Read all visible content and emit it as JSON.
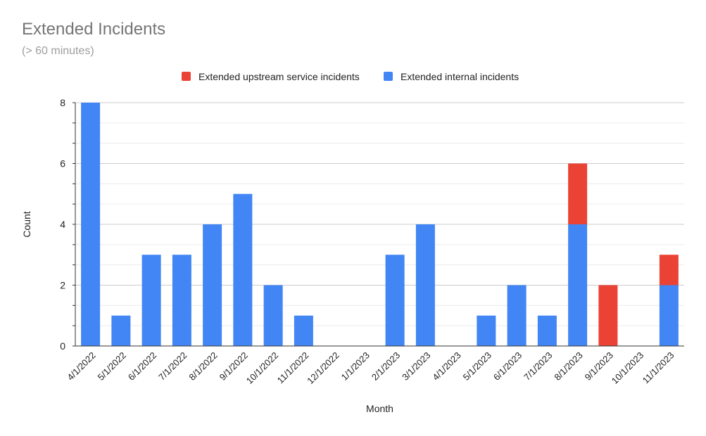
{
  "chart_data": {
    "type": "bar",
    "stacked": true,
    "title": "Extended Incidents",
    "subtitle": "(> 60 minutes)",
    "xlabel": "Month",
    "ylabel": "Count",
    "ylim": [
      0,
      8
    ],
    "yticks": [
      0,
      2,
      4,
      6,
      8
    ],
    "grid": true,
    "legend_position": "top",
    "categories": [
      "4/1/2022",
      "5/1/2022",
      "6/1/2022",
      "7/1/2022",
      "8/1/2022",
      "9/1/2022",
      "10/1/2022",
      "11/1/2022",
      "12/1/2022",
      "1/1/2023",
      "2/1/2023",
      "3/1/2023",
      "4/1/2023",
      "5/1/2023",
      "6/1/2023",
      "7/1/2023",
      "8/1/2023",
      "9/1/2023",
      "10/1/2023",
      "11/1/2023"
    ],
    "series": [
      {
        "name": "Extended internal incidents",
        "color": "#4285f4",
        "values": [
          8,
          1,
          3,
          3,
          4,
          5,
          2,
          1,
          0,
          0,
          3,
          4,
          0,
          1,
          2,
          1,
          4,
          0,
          0,
          2
        ]
      },
      {
        "name": "Extended upstream service incidents",
        "color": "#ea4335",
        "values": [
          0,
          0,
          0,
          0,
          0,
          0,
          0,
          0,
          0,
          0,
          0,
          0,
          0,
          0,
          0,
          0,
          2,
          2,
          0,
          1
        ]
      }
    ],
    "legend_order": [
      1,
      0
    ]
  }
}
